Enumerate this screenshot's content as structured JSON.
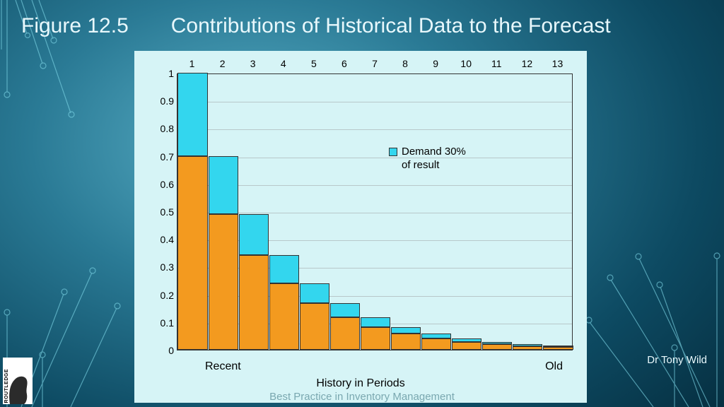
{
  "title": {
    "figure_label": "Figure 12.5",
    "figure_title": "Contributions of Historical Data to the Forecast",
    "fontsize": 30,
    "color": "#e8f8fc"
  },
  "author": "Dr Tony Wild",
  "footer": "Best Practice in Inventory Management",
  "logo_text": "ROUTLEDGE",
  "chart": {
    "type": "bar",
    "panel_bg": "#d6f4f6",
    "grid_color": "#b8c8ca",
    "border_color": "#333333",
    "x_categories": [
      "1",
      "2",
      "3",
      "4",
      "5",
      "6",
      "7",
      "8",
      "9",
      "10",
      "11",
      "12",
      "13"
    ],
    "lower_values": [
      0.7,
      0.49,
      0.343,
      0.24,
      0.168,
      0.118,
      0.082,
      0.058,
      0.04,
      0.028,
      0.02,
      0.014,
      0.01
    ],
    "total_values": [
      1.0,
      0.7,
      0.49,
      0.343,
      0.24,
      0.168,
      0.118,
      0.082,
      0.058,
      0.04,
      0.028,
      0.02,
      0.014
    ],
    "lower_color": "#f39a1f",
    "upper_color": "#33d6ee",
    "ylim": [
      0,
      1
    ],
    "ytick_step": 0.1,
    "y_ticks": [
      "0",
      "0.1",
      "0.2",
      "0.3",
      "0.4",
      "0.5",
      "0.6",
      "0.7",
      "0.8",
      "0.9",
      "1"
    ],
    "bar_width_ratio": 0.98,
    "tick_fontsize": 14,
    "x_end_labels": {
      "left": "Recent",
      "right": "Old"
    },
    "x_axis_title": "History in Periods",
    "legend": {
      "text": "Demand 30% of result",
      "swatch_color": "#33d6ee"
    }
  },
  "background": {
    "gradient_inner": "#5ab0c7",
    "gradient_mid": "#2a7a95",
    "gradient_outer": "#052c3d",
    "circuit_color": "#7fd8e8"
  }
}
